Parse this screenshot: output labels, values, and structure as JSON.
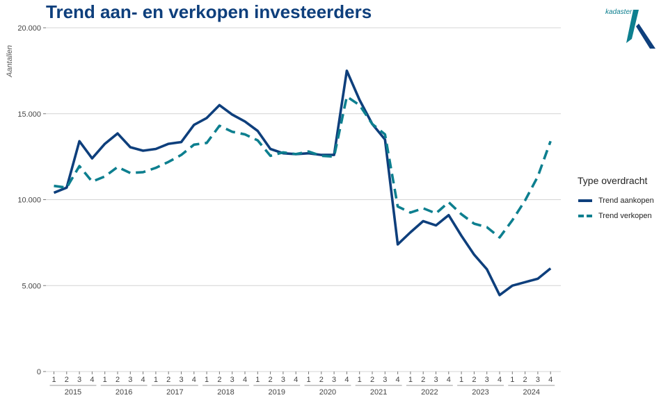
{
  "chart_data": {
    "type": "line",
    "title": "Trend aan- en verkopen investeerders",
    "xlabel": "",
    "ylabel": "Aantallen",
    "ylim": [
      0,
      20000
    ],
    "yticks": [
      0,
      5000,
      10000,
      15000,
      20000
    ],
    "ytick_labels": [
      "0",
      "5.000",
      "10.000",
      "15.000",
      "20.000"
    ],
    "years": [
      "2015",
      "2016",
      "2017",
      "2018",
      "2019",
      "2020",
      "2021",
      "2022",
      "2023",
      "2024"
    ],
    "quarters": [
      "1",
      "2",
      "3",
      "4"
    ],
    "grid": true,
    "legend_title": "Type overdracht",
    "legend_position": "right",
    "series": [
      {
        "name": "Trend aankopen",
        "color": "#0e3f7c",
        "style": "solid",
        "values": [
          10400,
          10700,
          13400,
          12400,
          13250,
          13850,
          13050,
          12850,
          12950,
          13250,
          13350,
          14350,
          14750,
          15500,
          14950,
          14550,
          14000,
          12950,
          12700,
          12650,
          12700,
          12600,
          12600,
          17500,
          15800,
          14400,
          13500,
          7400,
          8100,
          8750,
          8500,
          9100,
          7900,
          6800,
          5950,
          4450,
          5000,
          5200,
          5400,
          6000
        ]
      },
      {
        "name": "Trend verkopen",
        "color": "#0d7f8f",
        "style": "dashed",
        "values": [
          10800,
          10700,
          11950,
          11050,
          11350,
          11900,
          11550,
          11600,
          11850,
          12200,
          12600,
          13200,
          13300,
          14300,
          13950,
          13800,
          13450,
          12550,
          12750,
          12650,
          12800,
          12550,
          12500,
          16000,
          15500,
          14400,
          13800,
          9600,
          9250,
          9500,
          9200,
          9850,
          9150,
          8600,
          8400,
          7800,
          8800,
          9950,
          11350,
          13400
        ]
      }
    ]
  },
  "logo": {
    "text": "kadaster"
  }
}
